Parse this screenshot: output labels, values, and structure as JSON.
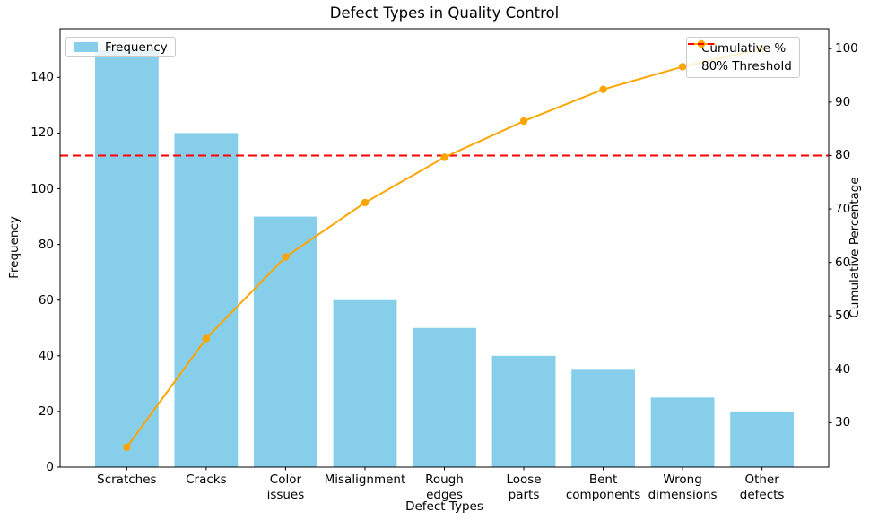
{
  "title": "Defect Types in Quality Control",
  "axes": {
    "x_label": "Defect Types",
    "y_left_label": "Frequency",
    "y_right_label": "Cumulative Percentage",
    "y_left_ticks": [
      0,
      20,
      40,
      60,
      80,
      100,
      120,
      140
    ],
    "y_right_ticks": [
      30,
      40,
      50,
      60,
      70,
      80,
      90,
      100
    ]
  },
  "legend_left": {
    "items": [
      {
        "label": "Frequency",
        "swatch": "bar-patch",
        "color": "#87CEEB"
      }
    ]
  },
  "legend_right": {
    "items": [
      {
        "label": "Cumulative %",
        "swatch": "line-with-marker",
        "color": "#FFA500"
      },
      {
        "label": "80% Threshold",
        "swatch": "dashed-line",
        "color": "#FF0000"
      }
    ]
  },
  "chart_data": {
    "type": "bar",
    "subtype": "pareto-combo",
    "title": "Defect Types in Quality Control",
    "xlabel": "Defect Types",
    "ylabel_left": "Frequency",
    "ylabel_right": "Cumulative Percentage",
    "categories": [
      "Scratches",
      "Cracks",
      "Color\nissues",
      "Misalignment",
      "Rough\nedges",
      "Loose\nparts",
      "Bent\ncomponents",
      "Wrong\ndimensions",
      "Other\ndefects"
    ],
    "series": [
      {
        "name": "Frequency",
        "render": "bar",
        "axis": "left",
        "color": "#87CEEB",
        "values": [
          150,
          120,
          90,
          60,
          50,
          40,
          35,
          25,
          20
        ]
      },
      {
        "name": "Cumulative %",
        "render": "line",
        "axis": "right",
        "color": "#FFA500",
        "marker": "circle",
        "values": [
          25.42,
          45.76,
          61.02,
          71.19,
          79.66,
          86.44,
          92.37,
          96.61,
          100.0
        ]
      },
      {
        "name": "80% Threshold",
        "render": "hline",
        "axis": "right",
        "color": "#FF0000",
        "style": "dashed",
        "value": 80
      }
    ],
    "ylim_left": [
      0,
      157.5
    ],
    "ylim_right": [
      21.69,
      103.73
    ],
    "grid": false,
    "legend_positions": [
      "upper left",
      "upper right"
    ]
  }
}
